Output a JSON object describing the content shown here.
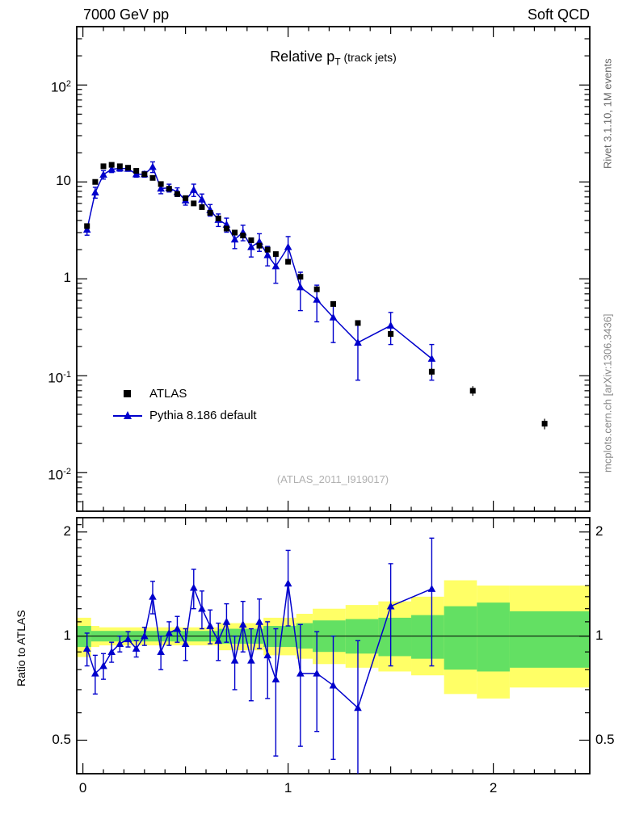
{
  "header": {
    "left": "7000 GeV pp",
    "right": "Soft QCD"
  },
  "title": {
    "prefix": "Relative p",
    "sub": "T",
    "suffix": " (track jets)"
  },
  "legend": {
    "atlas": "ATLAS",
    "pythia": "Pythia 8.186 default"
  },
  "watermark": "(ATLAS_2011_I919017)",
  "side_notes": {
    "top": "Rivet 3.1.10, 1M events",
    "bottom": "mcplots.cern.ch [arXiv:1306.3436]"
  },
  "ratio_axis_label": "Ratio to ATLAS",
  "colors": {
    "atlas": "#000000",
    "pythia": "#0000cc",
    "band_yellow": "#ffff66",
    "band_green": "#63e063",
    "frame": "#000000",
    "watermark": "#b0b0b0"
  },
  "chart_data": {
    "type": "line",
    "title": "Relative pT (track jets)",
    "xlabel": "",
    "ylabel": "",
    "ratio_ylabel": "Ratio to ATLAS",
    "x": [
      0.02,
      0.06,
      0.1,
      0.14,
      0.18,
      0.22,
      0.26,
      0.3,
      0.34,
      0.38,
      0.42,
      0.46,
      0.5,
      0.54,
      0.58,
      0.62,
      0.66,
      0.7,
      0.74,
      0.78,
      0.82,
      0.86,
      0.9,
      0.94,
      1.0,
      1.06,
      1.14,
      1.22,
      1.34,
      1.5,
      1.7,
      1.9,
      2.25
    ],
    "series": [
      {
        "name": "ATLAS",
        "marker": "square",
        "color": "#000000",
        "values": [
          3.5,
          10.0,
          14.5,
          15.0,
          14.5,
          14.0,
          13.0,
          12.0,
          11.0,
          9.5,
          8.5,
          7.5,
          6.8,
          6.0,
          5.5,
          4.8,
          4.2,
          3.3,
          3.0,
          2.8,
          2.5,
          2.2,
          2.0,
          1.8,
          1.5,
          1.05,
          0.78,
          0.55,
          0.35,
          0.27,
          0.11,
          0.07,
          0.032
        ],
        "errors": [
          0.15,
          0.4,
          0.5,
          0.5,
          0.5,
          0.5,
          0.45,
          0.4,
          0.4,
          0.35,
          0.3,
          0.3,
          0.25,
          0.22,
          0.2,
          0.18,
          0.16,
          0.13,
          0.12,
          0.11,
          0.1,
          0.09,
          0.08,
          0.08,
          0.07,
          0.05,
          0.04,
          0.03,
          0.02,
          0.02,
          0.01,
          0.008,
          0.004
        ]
      },
      {
        "name": "Pythia 8.186 default",
        "marker": "triangle",
        "color": "#0000cc",
        "line": true,
        "values": [
          3.22,
          7.8,
          11.9,
          13.5,
          13.8,
          13.7,
          12.0,
          12.0,
          14.3,
          8.55,
          8.67,
          7.88,
          6.46,
          8.28,
          6.6,
          5.14,
          4.07,
          3.63,
          2.55,
          3.02,
          2.13,
          2.42,
          1.76,
          1.35,
          2.13,
          0.82,
          0.61,
          0.4,
          0.22,
          0.33,
          0.15,
          null,
          null
        ],
        "errors": [
          0.4,
          1.0,
          1.2,
          1.0,
          0.9,
          0.8,
          0.8,
          0.8,
          1.8,
          1.0,
          0.8,
          0.8,
          0.7,
          1.2,
          0.9,
          0.7,
          0.6,
          0.6,
          0.5,
          0.55,
          0.45,
          0.5,
          0.4,
          0.45,
          0.6,
          0.35,
          0.25,
          0.18,
          0.13,
          0.12,
          0.06,
          null,
          null
        ]
      }
    ],
    "ratio": {
      "name": "Pythia 8.186 default / ATLAS",
      "values": [
        0.92,
        0.78,
        0.82,
        0.9,
        0.95,
        0.98,
        0.92,
        1.0,
        1.3,
        0.9,
        1.02,
        1.05,
        0.95,
        1.38,
        1.2,
        1.07,
        0.97,
        1.1,
        0.85,
        1.08,
        0.85,
        1.1,
        0.88,
        0.75,
        1.42,
        0.78,
        0.78,
        0.72,
        0.62,
        1.22,
        1.37,
        null,
        null
      ],
      "errors": [
        0.1,
        0.1,
        0.07,
        0.06,
        0.05,
        0.05,
        0.05,
        0.06,
        0.14,
        0.1,
        0.08,
        0.09,
        0.1,
        0.18,
        0.15,
        0.12,
        0.12,
        0.14,
        0.15,
        0.18,
        0.2,
        0.18,
        0.22,
        0.3,
        0.35,
        0.3,
        0.25,
        0.28,
        0.35,
        0.4,
        0.55,
        null,
        null
      ],
      "reference_line": 1.0,
      "bands": {
        "yellow": [
          [
            -0.03,
            0.04,
            0.87,
            1.13
          ],
          [
            0.04,
            0.08,
            0.93,
            1.07
          ],
          [
            0.08,
            0.66,
            0.94,
            1.06
          ],
          [
            0.66,
            0.88,
            0.91,
            1.09
          ],
          [
            0.88,
            1.04,
            0.88,
            1.13
          ],
          [
            1.04,
            1.12,
            0.86,
            1.16
          ],
          [
            1.12,
            1.28,
            0.83,
            1.2
          ],
          [
            1.28,
            1.44,
            0.81,
            1.23
          ],
          [
            1.44,
            1.6,
            0.79,
            1.26
          ],
          [
            1.6,
            1.76,
            0.77,
            1.3
          ],
          [
            1.76,
            1.92,
            0.68,
            1.45
          ],
          [
            1.92,
            2.08,
            0.66,
            1.4
          ],
          [
            2.08,
            2.47,
            0.71,
            1.4
          ]
        ],
        "green": [
          [
            -0.03,
            0.04,
            0.93,
            1.07
          ],
          [
            0.04,
            0.66,
            0.965,
            1.035
          ],
          [
            0.66,
            0.88,
            0.95,
            1.05
          ],
          [
            0.88,
            1.04,
            0.93,
            1.07
          ],
          [
            1.04,
            1.12,
            0.92,
            1.09
          ],
          [
            1.12,
            1.28,
            0.9,
            1.11
          ],
          [
            1.28,
            1.44,
            0.89,
            1.12
          ],
          [
            1.44,
            1.6,
            0.875,
            1.13
          ],
          [
            1.6,
            1.76,
            0.86,
            1.15
          ],
          [
            1.76,
            1.92,
            0.8,
            1.22
          ],
          [
            1.92,
            2.08,
            0.79,
            1.25
          ],
          [
            2.08,
            2.47,
            0.81,
            1.18
          ]
        ]
      }
    },
    "axes": {
      "x": {
        "min": -0.03,
        "max": 2.47,
        "minor_step": 0.1,
        "medium_step": 0.5,
        "major_step": 1.0,
        "labels": [
          {
            "v": 0,
            "t": "0"
          },
          {
            "v": 1,
            "t": "1"
          },
          {
            "v": 2,
            "t": "2"
          }
        ]
      },
      "y_main": {
        "scale": "log",
        "min": 0.004,
        "max": 400,
        "labels": [
          {
            "v": 100,
            "t": "10",
            "sup": "2"
          },
          {
            "v": 10,
            "t": "10",
            "sup": ""
          },
          {
            "v": 1,
            "t": "1",
            "sup": ""
          },
          {
            "v": 0.1,
            "t": "10",
            "sup": "-1"
          },
          {
            "v": 0.01,
            "t": "10",
            "sup": "-2"
          }
        ]
      },
      "y_ratio": {
        "scale": "log",
        "min": 0.4,
        "max": 2.2,
        "labels": [
          {
            "v": 2,
            "t": "2"
          },
          {
            "v": 1,
            "t": "1"
          },
          {
            "v": 0.5,
            "t": "0.5"
          }
        ],
        "minor_ticks": [
          0.4,
          0.6,
          0.7,
          0.8,
          0.9,
          1.1,
          1.2,
          1.3,
          1.4,
          1.5,
          1.6,
          1.7,
          1.8,
          1.9,
          2.1
        ]
      }
    }
  }
}
